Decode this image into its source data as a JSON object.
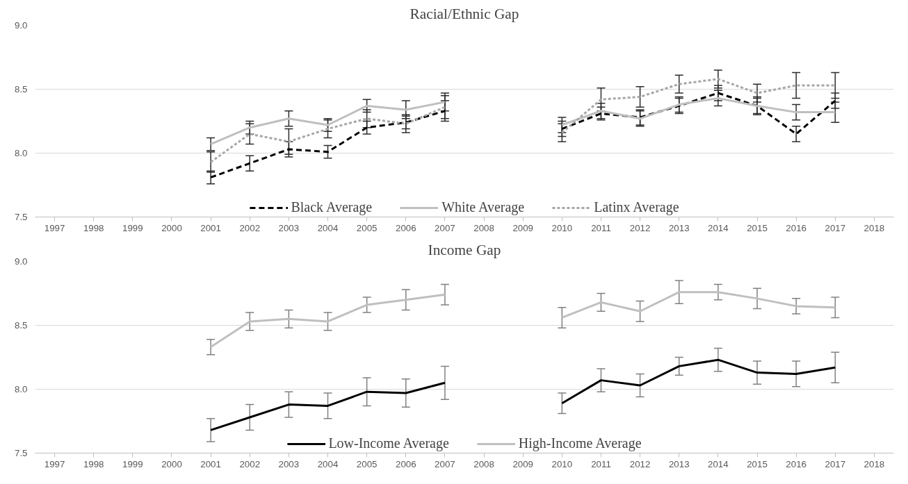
{
  "chart_data": [
    {
      "type": "line",
      "title": "Racial/Ethnic Gap",
      "categories": [
        "1997",
        "1998",
        "1999",
        "2000",
        "2001",
        "2002",
        "2003",
        "2004",
        "2005",
        "2006",
        "2007",
        "2008",
        "2009",
        "2010",
        "2011",
        "2012",
        "2013",
        "2014",
        "2015",
        "2016",
        "2017",
        "2018"
      ],
      "ylim": [
        7.5,
        9.0
      ],
      "yticks": [
        {
          "value": 7.5,
          "label": "7.5"
        },
        {
          "value": 8.0,
          "label": "8.0"
        },
        {
          "value": 8.5,
          "label": "8.5"
        },
        {
          "value": 9.0,
          "label": "9.0"
        }
      ],
      "grid": "y",
      "legend": "bottom",
      "marker": "none",
      "series": [
        {
          "name": "Black Average",
          "color": "#000000",
          "line_style": "dashed",
          "values": [
            null,
            null,
            null,
            null,
            7.81,
            7.92,
            8.03,
            8.01,
            8.2,
            8.24,
            8.33,
            null,
            null,
            8.19,
            8.31,
            8.28,
            8.37,
            8.47,
            8.37,
            8.15,
            8.41,
            null
          ],
          "errors": [
            null,
            null,
            null,
            null,
            0.05,
            0.06,
            0.06,
            0.05,
            0.05,
            0.05,
            0.08,
            null,
            null,
            0.06,
            0.05,
            0.06,
            0.06,
            0.06,
            0.07,
            0.06,
            0.06,
            null
          ]
        },
        {
          "name": "White Average",
          "color": "#bfbfbf",
          "line_style": "solid",
          "values": [
            null,
            null,
            null,
            null,
            8.07,
            8.2,
            8.27,
            8.22,
            8.37,
            8.34,
            8.4,
            null,
            null,
            8.22,
            8.33,
            8.27,
            8.38,
            8.43,
            8.37,
            8.32,
            8.32,
            null
          ],
          "errors": [
            null,
            null,
            null,
            null,
            0.05,
            0.05,
            0.06,
            0.05,
            0.05,
            0.07,
            0.07,
            null,
            null,
            0.06,
            0.06,
            0.06,
            0.06,
            0.06,
            0.06,
            0.06,
            0.08,
            null
          ]
        },
        {
          "name": "Latinx Average",
          "color": "#a6a6a6",
          "line_style": "dotted",
          "values": [
            null,
            null,
            null,
            null,
            7.93,
            8.15,
            8.09,
            8.19,
            8.27,
            8.23,
            8.36,
            null,
            null,
            8.16,
            8.42,
            8.44,
            8.54,
            8.58,
            8.47,
            8.53,
            8.53,
            null
          ],
          "errors": [
            null,
            null,
            null,
            null,
            0.08,
            0.08,
            0.1,
            0.07,
            0.07,
            0.07,
            0.09,
            null,
            null,
            0.07,
            0.09,
            0.08,
            0.07,
            0.07,
            0.07,
            0.1,
            0.1,
            null
          ]
        }
      ]
    },
    {
      "type": "line",
      "title": "Income Gap",
      "categories": [
        "1997",
        "1998",
        "1999",
        "2000",
        "2001",
        "2002",
        "2003",
        "2004",
        "2005",
        "2006",
        "2007",
        "2008",
        "2009",
        "2010",
        "2011",
        "2012",
        "2013",
        "2014",
        "2015",
        "2016",
        "2017",
        "2018"
      ],
      "ylim": [
        7.5,
        9.0
      ],
      "yticks": [
        {
          "value": 7.5,
          "label": "7.5"
        },
        {
          "value": 8.0,
          "label": "8.0"
        },
        {
          "value": 8.5,
          "label": "8.5"
        },
        {
          "value": 9.0,
          "label": "9.0"
        }
      ],
      "grid": "y",
      "legend": "bottom",
      "marker": "none",
      "series": [
        {
          "name": "Low-Income Average",
          "color": "#000000",
          "line_style": "solid",
          "values": [
            null,
            null,
            null,
            null,
            7.68,
            7.78,
            7.88,
            7.87,
            7.98,
            7.97,
            8.05,
            null,
            null,
            7.89,
            8.07,
            8.03,
            8.18,
            8.23,
            8.13,
            8.12,
            8.17,
            null
          ],
          "errors": [
            null,
            null,
            null,
            null,
            0.09,
            0.1,
            0.1,
            0.1,
            0.11,
            0.11,
            0.13,
            null,
            null,
            0.08,
            0.09,
            0.09,
            0.07,
            0.09,
            0.09,
            0.1,
            0.12,
            null
          ]
        },
        {
          "name": "High-Income Average",
          "color": "#bfbfbf",
          "line_style": "solid",
          "values": [
            null,
            null,
            null,
            null,
            8.33,
            8.53,
            8.55,
            8.53,
            8.66,
            8.7,
            8.74,
            null,
            null,
            8.56,
            8.68,
            8.61,
            8.76,
            8.76,
            8.71,
            8.65,
            8.64,
            null
          ],
          "errors": [
            null,
            null,
            null,
            null,
            0.06,
            0.07,
            0.07,
            0.07,
            0.06,
            0.08,
            0.08,
            null,
            null,
            0.08,
            0.07,
            0.08,
            0.09,
            0.06,
            0.08,
            0.06,
            0.08,
            null
          ]
        }
      ]
    }
  ]
}
